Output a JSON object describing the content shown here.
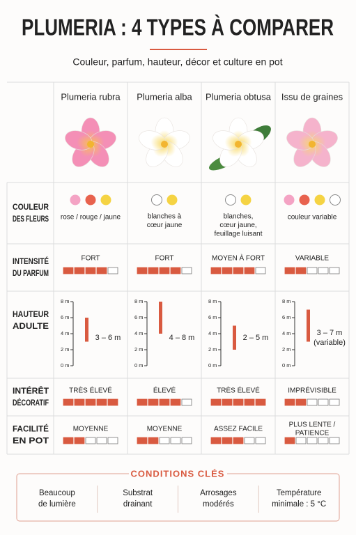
{
  "header": {
    "title": "PLUMERIA : 4 TYPES À COMPARER",
    "subtitle": "Couleur, parfum, hauteur, décor et culture en pot"
  },
  "columns": [
    "Plumeria rubra",
    "Plumeria alba",
    "Plumeria obtusa",
    "Issu de graines"
  ],
  "rows": {
    "color": {
      "label": [
        "COULEUR",
        "DES FLEURS"
      ],
      "cells": [
        {
          "dots": [
            "#f4a3c4",
            "#e8624e",
            "#f5d343"
          ],
          "text": [
            "rose / rouge / jaune"
          ]
        },
        {
          "dots": [
            "#ffffff",
            "#f5d343"
          ],
          "text": [
            "blanches à",
            "cœur jaune"
          ]
        },
        {
          "dots": [
            "#ffffff",
            "#f5d343"
          ],
          "text": [
            "blanches,",
            "cœur jaune,",
            "feuillage luisant"
          ]
        },
        {
          "dots": [
            "#f4a3c4",
            "#e8624e",
            "#f5d343",
            "#ffffff"
          ],
          "text": [
            "couleur variable"
          ]
        }
      ]
    },
    "fragrance": {
      "label": [
        "INTENSITÉ",
        "DU PARFUM"
      ],
      "scale_max": 5,
      "cells": [
        {
          "text": [
            "FORT"
          ],
          "rating": 4
        },
        {
          "text": [
            "FORT"
          ],
          "rating": 4
        },
        {
          "text": [
            "MOYEN À FORT"
          ],
          "rating": 4
        },
        {
          "text": [
            "VARIABLE"
          ],
          "rating": 2
        }
      ]
    },
    "height": {
      "label": [
        "HAUTEUR",
        "ADULTE"
      ],
      "ylim": [
        0,
        8
      ],
      "yticks": [
        {
          "value": 0,
          "label": "0 m"
        },
        {
          "value": 2,
          "label": "2 m"
        },
        {
          "value": 4,
          "label": "4 m"
        },
        {
          "value": 6,
          "label": "6 m"
        },
        {
          "value": 8,
          "label": "8 m"
        }
      ],
      "cells": [
        {
          "min": 3,
          "max": 6,
          "text": [
            "3 – 6 m"
          ]
        },
        {
          "min": 4,
          "max": 8,
          "text": [
            "4 – 8 m"
          ]
        },
        {
          "min": 2,
          "max": 5,
          "text": [
            "2 – 5 m"
          ]
        },
        {
          "min": 3,
          "max": 7,
          "text": [
            "3 – 7 m",
            "(variable)"
          ]
        }
      ]
    },
    "decor": {
      "label": [
        "INTÉRÊT",
        "DÉCORATIF"
      ],
      "scale_max": 5,
      "cells": [
        {
          "text": [
            "TRÈS ÉLEVÉ"
          ],
          "rating": 5
        },
        {
          "text": [
            "ÉLEVÉ"
          ],
          "rating": 4
        },
        {
          "text": [
            "TRÈS ÉLEVÉ"
          ],
          "rating": 5
        },
        {
          "text": [
            "IMPRÉVISIBLE"
          ],
          "rating": 2
        }
      ]
    },
    "pot": {
      "label": [
        "FACILITÉ",
        "EN POT"
      ],
      "scale_max": 5,
      "cells": [
        {
          "text": [
            "MOYENNE"
          ],
          "rating": 2
        },
        {
          "text": [
            "MOYENNE"
          ],
          "rating": 2
        },
        {
          "text": [
            "ASSEZ FACILE"
          ],
          "rating": 3
        },
        {
          "text": [
            "PLUS LENTE /",
            "PATIENCE"
          ],
          "rating": 1
        }
      ]
    }
  },
  "conditions": {
    "title": "CONDITIONS CLÉS",
    "items": [
      [
        "Beaucoup",
        "de lumière"
      ],
      [
        "Substrat",
        "drainant"
      ],
      [
        "Arrosages",
        "modérés"
      ],
      [
        "Température",
        "minimale : 5 °C"
      ]
    ]
  }
}
